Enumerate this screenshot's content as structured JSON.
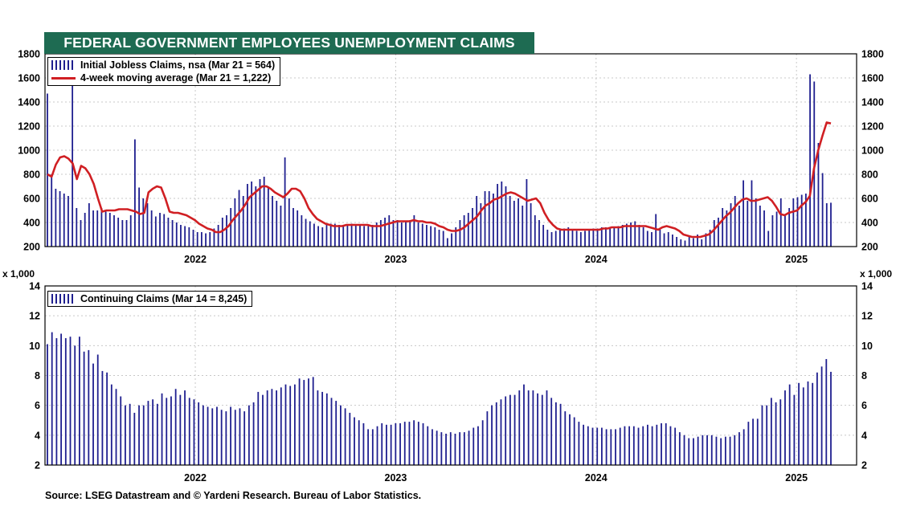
{
  "title": "FEDERAL GOVERNMENT EMPLOYEES UNEMPLOYMENT CLAIMS",
  "source": "Source: LSEG Datastream and © Yardeni Research. Bureau of Labor Statistics.",
  "colors": {
    "bars": "#1f1f8f",
    "moving_average": "#d01f23",
    "title_bg": "#1e6b52",
    "grid": "#c8c8c8"
  },
  "chart_data": [
    {
      "type": "bar",
      "panel": "top",
      "legend_placement": "top-left",
      "grid": true,
      "ylim": [
        200,
        1800
      ],
      "yticks": [
        200,
        400,
        600,
        800,
        1000,
        1200,
        1400,
        1600,
        1800
      ],
      "xlim": [
        2021.25,
        2025.3
      ],
      "xticks": [
        2022,
        2023,
        2024,
        2025
      ],
      "xtick_labels": [
        "2022",
        "2023",
        "2024",
        "2025"
      ],
      "series": [
        {
          "name": "Initial Jobless Claims, nsa (Mar 21 = 564)",
          "type": "bar",
          "values": [
            1470,
            800,
            680,
            660,
            640,
            620,
            1580,
            520,
            420,
            480,
            560,
            500,
            500,
            520,
            490,
            480,
            460,
            440,
            420,
            420,
            460,
            1090,
            690,
            600,
            560,
            500,
            450,
            480,
            470,
            440,
            420,
            400,
            380,
            370,
            360,
            340,
            320,
            320,
            310,
            320,
            350,
            380,
            440,
            460,
            520,
            600,
            670,
            620,
            720,
            740,
            700,
            760,
            780,
            700,
            620,
            580,
            540,
            940,
            600,
            520,
            500,
            460,
            430,
            410,
            390,
            370,
            360,
            380,
            390,
            390,
            380,
            380,
            380,
            390,
            380,
            380,
            370,
            370,
            380,
            400,
            420,
            440,
            460,
            420,
            420,
            400,
            410,
            420,
            460,
            400,
            390,
            380,
            370,
            360,
            340,
            330,
            270,
            310,
            360,
            420,
            460,
            480,
            520,
            620,
            560,
            660,
            660,
            640,
            720,
            740,
            700,
            620,
            580,
            600,
            540,
            760,
            560,
            460,
            420,
            380,
            340,
            320,
            330,
            340,
            350,
            360,
            340,
            330,
            320,
            330,
            340,
            350,
            350,
            360,
            360,
            350,
            360,
            370,
            380,
            390,
            400,
            410,
            380,
            360,
            330,
            320,
            470,
            340,
            310,
            320,
            300,
            280,
            260,
            250,
            280,
            270,
            300,
            260,
            310,
            340,
            420,
            440,
            520,
            500,
            560,
            620,
            540,
            750,
            580,
            750,
            600,
            540,
            500,
            330,
            460,
            490,
            600,
            460,
            520,
            600,
            610,
            630,
            640,
            1630,
            1570,
            1060,
            810,
            560,
            564
          ]
        },
        {
          "name": "4-week moving average (Mar 21 = 1,222)",
          "type": "line",
          "values": [
            800,
            780,
            880,
            940,
            950,
            930,
            890,
            760,
            870,
            850,
            800,
            720,
            600,
            490,
            500,
            500,
            500,
            510,
            510,
            510,
            500,
            490,
            470,
            480,
            650,
            680,
            700,
            690,
            600,
            490,
            480,
            480,
            470,
            460,
            440,
            420,
            390,
            370,
            350,
            340,
            320,
            320,
            340,
            370,
            420,
            460,
            500,
            550,
            610,
            640,
            670,
            700,
            700,
            680,
            650,
            630,
            610,
            640,
            680,
            680,
            660,
            600,
            520,
            470,
            430,
            410,
            390,
            380,
            370,
            370,
            370,
            380,
            380,
            380,
            380,
            380,
            380,
            370,
            370,
            370,
            380,
            390,
            400,
            410,
            410,
            410,
            410,
            420,
            410,
            410,
            400,
            400,
            390,
            370,
            360,
            340,
            330,
            330,
            340,
            360,
            390,
            420,
            450,
            500,
            540,
            560,
            590,
            600,
            620,
            640,
            650,
            640,
            620,
            600,
            580,
            590,
            600,
            560,
            480,
            420,
            380,
            350,
            340,
            340,
            340,
            340,
            340,
            340,
            340,
            340,
            340,
            340,
            350,
            350,
            360,
            360,
            360,
            370,
            370,
            370,
            370,
            370,
            370,
            360,
            350,
            340,
            360,
            370,
            360,
            350,
            330,
            300,
            290,
            280,
            280,
            280,
            290,
            300,
            330,
            370,
            410,
            450,
            480,
            520,
            560,
            590,
            600,
            580,
            580,
            590,
            600,
            610,
            580,
            530,
            470,
            460,
            480,
            490,
            500,
            540,
            570,
            620,
            850,
            1000,
            1120,
            1230,
            1222
          ]
        }
      ]
    },
    {
      "type": "bar",
      "panel": "bottom",
      "legend_placement": "top-left",
      "grid": true,
      "ylabel": "x 1,000",
      "ylim": [
        2,
        14
      ],
      "yticks": [
        2,
        4,
        6,
        8,
        10,
        12,
        14
      ],
      "xlim": [
        2021.25,
        2025.3
      ],
      "xticks": [
        2022,
        2023,
        2024,
        2025
      ],
      "xtick_labels": [
        "2022",
        "2023",
        "2024",
        "2025"
      ],
      "series": [
        {
          "name": "Continuing Claims (Mar 14 = 8,245)",
          "type": "bar",
          "values": [
            10.1,
            10.9,
            10.5,
            10.8,
            10.5,
            10.6,
            10.0,
            10.6,
            9.6,
            9.7,
            8.8,
            9.4,
            8.3,
            8.2,
            7.4,
            7.1,
            6.6,
            6.0,
            6.1,
            5.5,
            6.0,
            6.0,
            6.3,
            6.4,
            6.1,
            6.8,
            6.5,
            6.6,
            7.1,
            6.7,
            7.0,
            6.5,
            6.4,
            6.2,
            6.0,
            5.9,
            5.8,
            5.9,
            5.7,
            5.6,
            5.9,
            5.7,
            5.8,
            5.6,
            6.0,
            6.2,
            6.9,
            6.7,
            7.0,
            7.1,
            7.0,
            7.2,
            7.4,
            7.3,
            7.4,
            7.8,
            7.7,
            7.8,
            7.9,
            7.0,
            6.9,
            6.8,
            6.5,
            6.3,
            6.0,
            5.8,
            5.5,
            5.2,
            5.0,
            4.8,
            4.4,
            4.4,
            4.6,
            4.8,
            4.7,
            4.7,
            4.8,
            4.8,
            4.9,
            4.9,
            5.0,
            4.9,
            4.8,
            4.6,
            4.4,
            4.3,
            4.2,
            4.1,
            4.2,
            4.1,
            4.2,
            4.2,
            4.3,
            4.5,
            4.6,
            5.0,
            5.6,
            6.0,
            6.2,
            6.4,
            6.6,
            6.7,
            6.7,
            7.0,
            7.4,
            7.0,
            7.0,
            6.8,
            6.7,
            7.0,
            6.5,
            6.2,
            6.1,
            5.6,
            5.4,
            5.2,
            4.9,
            4.7,
            4.6,
            4.5,
            4.5,
            4.5,
            4.4,
            4.4,
            4.4,
            4.5,
            4.6,
            4.6,
            4.6,
            4.5,
            4.6,
            4.7,
            4.6,
            4.7,
            4.8,
            4.8,
            4.6,
            4.5,
            4.2,
            4.0,
            3.8,
            3.8,
            3.9,
            4.0,
            4.0,
            4.0,
            3.9,
            3.8,
            3.9,
            3.9,
            4.0,
            4.2,
            4.4,
            4.9,
            5.1,
            5.1,
            6.0,
            6.0,
            6.5,
            6.2,
            6.4,
            7.0,
            7.4,
            6.7,
            7.5,
            7.2,
            7.6,
            7.5,
            8.2,
            8.6,
            9.1,
            8.245
          ]
        }
      ]
    }
  ]
}
